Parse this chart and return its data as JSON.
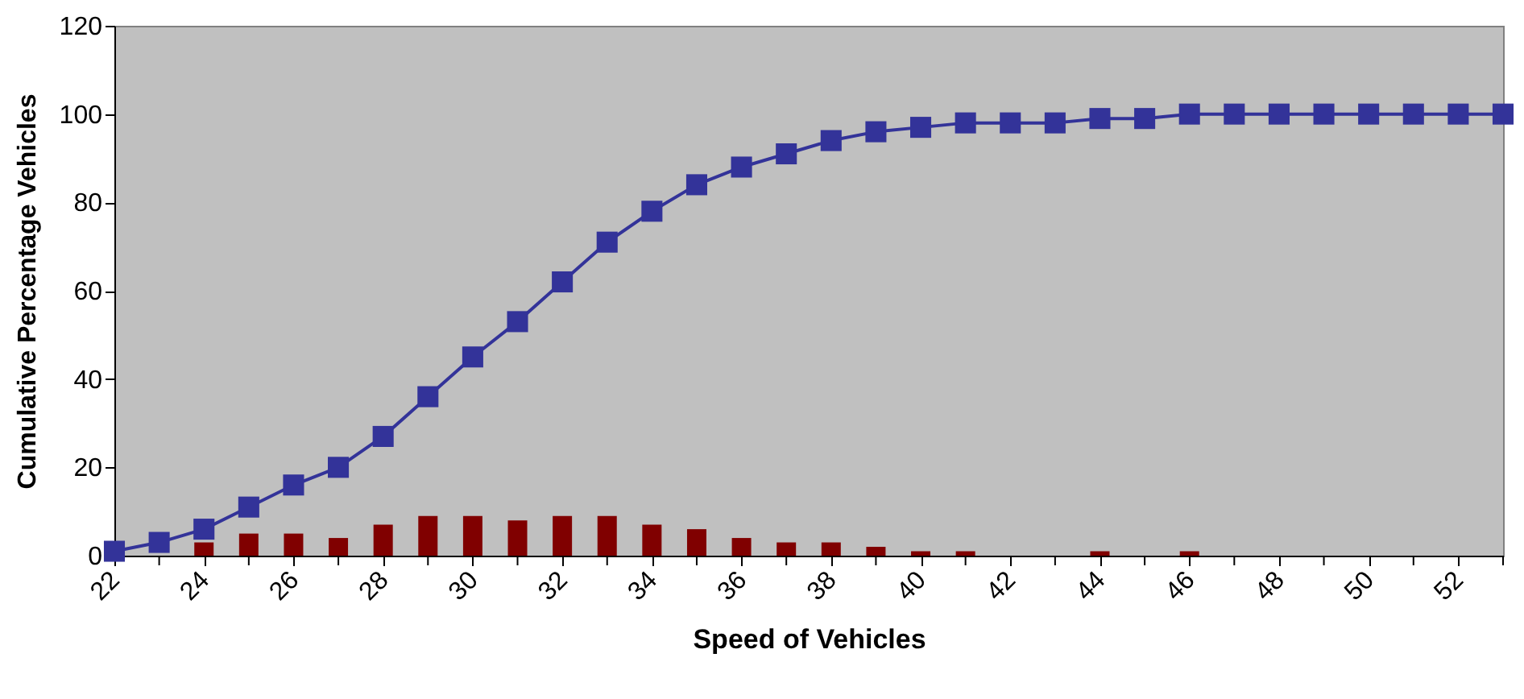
{
  "chart_data": {
    "type": "line",
    "xlabel": "Speed of Vehicles",
    "ylabel": "Cumulative Percentage Vehicles",
    "x": [
      22,
      23,
      24,
      25,
      26,
      27,
      28,
      29,
      30,
      31,
      32,
      33,
      34,
      35,
      36,
      37,
      38,
      39,
      40,
      41,
      42,
      43,
      44,
      45,
      46,
      47,
      48,
      49,
      50,
      51,
      52,
      53
    ],
    "series": [
      {
        "type": "bar",
        "color": "#800000",
        "values": [
          null,
          null,
          3,
          5,
          5,
          4,
          7,
          9,
          9,
          8,
          9,
          9,
          7,
          6,
          4,
          3,
          3,
          2,
          1,
          1,
          0,
          0,
          1,
          0,
          1,
          0,
          0,
          0,
          0,
          0,
          0,
          0
        ]
      },
      {
        "color": "#333399",
        "marker": "square",
        "values": [
          1,
          3,
          6,
          11,
          16,
          20,
          27,
          36,
          45,
          53,
          62,
          71,
          78,
          84,
          88,
          91,
          94,
          96,
          97,
          98,
          98,
          98,
          99,
          99,
          100,
          100,
          100,
          100,
          100,
          100,
          100,
          100
        ]
      }
    ],
    "xlim": [
      22,
      53
    ],
    "xticks": [
      22,
      {
        "value": 23,
        "label": null
      },
      24,
      {
        "value": 25,
        "label": null
      },
      26,
      {
        "value": 27,
        "label": null
      },
      28,
      {
        "value": 29,
        "label": null
      },
      30,
      {
        "value": 31,
        "label": null
      },
      32,
      {
        "value": 33,
        "label": null
      },
      34,
      {
        "value": 35,
        "label": null
      },
      36,
      {
        "value": 37,
        "label": null
      },
      38,
      {
        "value": 39,
        "label": null
      },
      40,
      {
        "value": 41,
        "label": null
      },
      42,
      {
        "value": 43,
        "label": null
      },
      44,
      {
        "value": 45,
        "label": null
      },
      46,
      {
        "value": 47,
        "label": null
      },
      48,
      {
        "value": 49,
        "label": null
      },
      50,
      {
        "value": 51,
        "label": null
      },
      52,
      {
        "value": 53,
        "label": null
      }
    ],
    "ylim": [
      0,
      120
    ],
    "yticks": [
      0,
      20,
      40,
      60,
      80,
      100,
      120
    ],
    "grid": false
  }
}
